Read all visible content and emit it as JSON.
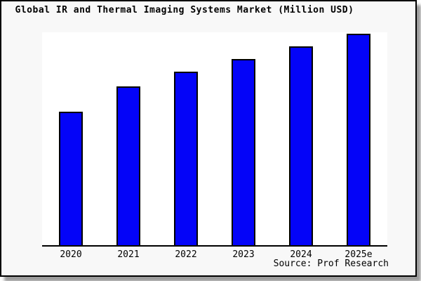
{
  "chart_data": {
    "type": "bar",
    "title": "Global IR and Thermal Imaging Systems Market (Million USD)",
    "categories": [
      "2020",
      "2021",
      "2022",
      "2023",
      "2024",
      "2025e"
    ],
    "values": [
      63,
      75,
      82,
      88,
      94,
      100
    ],
    "value_scale": "relative (no y-axis or value labels visible; 2025e bar = 100)",
    "xlabel": "",
    "ylabel": "",
    "ylim": [
      0,
      100
    ],
    "grid": false,
    "legend": false,
    "bar_color": "#0404f8",
    "bar_border_color": "#000000",
    "plot_background": "#ffffff",
    "card_background": "#f8f8f8",
    "source_note": "Source: Prof Research"
  }
}
